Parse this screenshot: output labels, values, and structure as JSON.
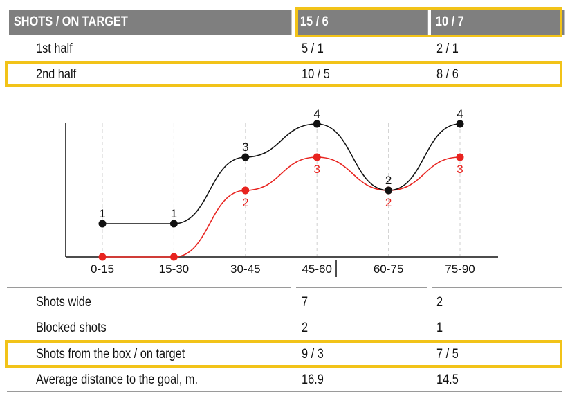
{
  "header": {
    "title": "SHOTS / ON TARGET",
    "team1": "15 / 6",
    "team2": "10 / 7"
  },
  "halves": [
    {
      "label": "1st half",
      "team1": "5 / 1",
      "team2": "2 / 1"
    },
    {
      "label": "2nd half",
      "team1": "10 / 5",
      "team2": "8 / 6"
    }
  ],
  "stats": [
    {
      "label": "Shots wide",
      "team1": "7",
      "team2": "2"
    },
    {
      "label": "Blocked shots",
      "team1": "2",
      "team2": "1"
    },
    {
      "label": "Shots from the box / on target",
      "team1": "9 / 3",
      "team2": "7 / 5"
    },
    {
      "label": "Average distance to the goal, m.",
      "team1": "16.9",
      "team2": "14.5"
    }
  ],
  "colors": {
    "header_bg": "#7f7f7f",
    "highlight": "#f2c318",
    "series_black": "#111111",
    "series_red": "#e8231f"
  },
  "chart_data": {
    "type": "line",
    "categories": [
      "0-15",
      "15-30",
      "30-45",
      "45-60",
      "60-75",
      "75-90"
    ],
    "series": [
      {
        "color": "#111111",
        "values": [
          1,
          1,
          3,
          4,
          2,
          4
        ]
      },
      {
        "color": "#e8231f",
        "values": [
          0,
          0,
          2,
          3,
          2,
          3
        ]
      }
    ],
    "ylim": [
      0,
      4
    ],
    "grid": "vertical-dashed"
  }
}
